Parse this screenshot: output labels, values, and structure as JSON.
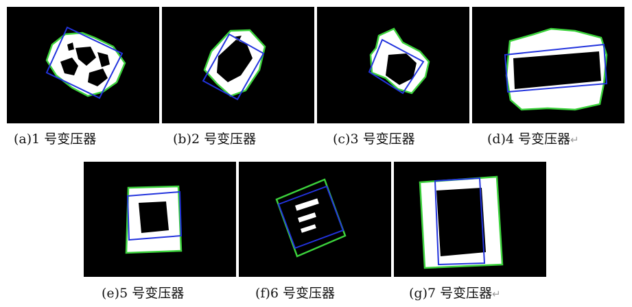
{
  "colors": {
    "background": "#000000",
    "outer_contour": "#3cd23c",
    "min_rect": "#2233dd",
    "mask": "#ffffff"
  },
  "captions": {
    "a": "(a)1 号变压器",
    "b": "(b)2 号变压器",
    "c": "(c)3 号变压器",
    "d": "(d)4 号变压器",
    "e": "(e)5 号变压器",
    "f": "(f)6 号变压器",
    "g": "(g)7 号变压器"
  },
  "return_mark": "↵"
}
